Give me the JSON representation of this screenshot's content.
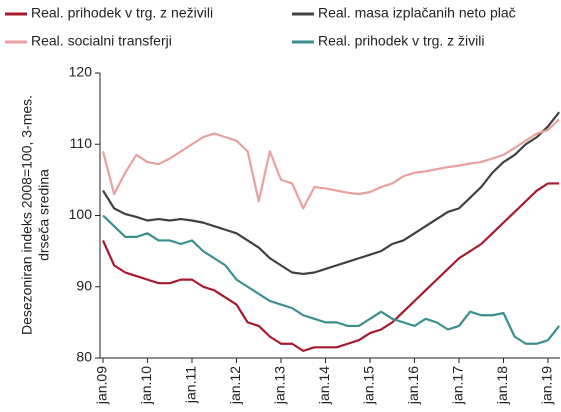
{
  "chart_data": {
    "type": "line",
    "ylabel": [
      "Desezoniran indeks 2008=100, 3-mes.",
      "drseča sredina"
    ],
    "categories": [
      "jan.09",
      null,
      null,
      null,
      "jan.10",
      null,
      null,
      null,
      "jan.11",
      null,
      null,
      null,
      "jan.12",
      null,
      null,
      null,
      "jan.13",
      null,
      null,
      null,
      "jan.14",
      null,
      null,
      null,
      "jan.15",
      null,
      null,
      null,
      "jan.16",
      null,
      null,
      null,
      "jan.17",
      null,
      null,
      null,
      "jan.18",
      null,
      null,
      null,
      "jan.19",
      null
    ],
    "ylim": [
      80,
      120
    ],
    "yticks": [
      80,
      90,
      100,
      110,
      120
    ],
    "grid": false,
    "series": [
      {
        "name": "Real. prihodek v trg. z neživili",
        "color": "#a6192e",
        "values": [
          96.5,
          93,
          92,
          91.5,
          91,
          90.5,
          90.5,
          91,
          91,
          90,
          89.5,
          88.5,
          87.5,
          85,
          84.5,
          83,
          82,
          82,
          81,
          81.5,
          81.5,
          81.5,
          82,
          82.5,
          83.5,
          84,
          85,
          86.5,
          88,
          89.5,
          91,
          92.5,
          94,
          95,
          96,
          97.5,
          99,
          100.5,
          102,
          103.5,
          104.5,
          104.5
        ]
      },
      {
        "name": "Real. masa izplačanih neto plač",
        "color": "#404040",
        "values": [
          103.5,
          101,
          100.2,
          99.8,
          99.3,
          99.5,
          99.3,
          99.5,
          99.3,
          99,
          98.5,
          98,
          97.5,
          96.5,
          95.5,
          94,
          93,
          92,
          91.8,
          92,
          92.5,
          93,
          93.5,
          94,
          94.5,
          95,
          96,
          96.5,
          97.5,
          98.5,
          99.5,
          100.5,
          101,
          102.5,
          104,
          106,
          107.5,
          108.5,
          110,
          111,
          112.5,
          114.5
        ]
      },
      {
        "name": "Real. socialni transferji",
        "color": "#e8a0a0",
        "values": [
          109,
          103,
          106,
          108.5,
          107.5,
          107.2,
          108,
          109,
          110,
          111,
          111.5,
          111,
          110.5,
          109,
          102,
          109,
          105,
          104.5,
          101,
          104,
          103.8,
          103.5,
          103.2,
          103,
          103.3,
          104,
          104.5,
          105.5,
          106,
          106.2,
          106.5,
          106.8,
          107,
          107.3,
          107.5,
          108,
          108.5,
          109.5,
          110.5,
          111.5,
          112,
          113.5
        ]
      },
      {
        "name": "Real. prihodek v trg. z živili",
        "color": "#3a8f8f",
        "values": [
          100,
          98.5,
          97,
          97,
          97.5,
          96.5,
          96.5,
          96,
          96.5,
          95,
          94,
          93,
          91,
          90,
          89,
          88,
          87.5,
          87,
          86,
          85.5,
          85,
          85,
          84.5,
          84.5,
          85.5,
          86.5,
          85.5,
          85,
          84.5,
          85.5,
          85,
          84,
          84.5,
          86.5,
          86,
          86,
          86.3,
          83,
          82,
          82,
          82.5,
          84.5
        ]
      }
    ]
  }
}
